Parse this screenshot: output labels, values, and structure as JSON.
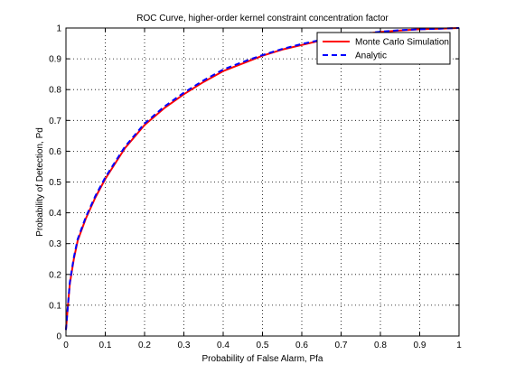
{
  "chart_data": {
    "type": "line",
    "title": "ROC Curve, higher-order kernel constraint concentration factor",
    "xlabel": "Probability of False Alarm, Pfa",
    "ylabel": "Probability of Detection, Pd",
    "xlim": [
      0,
      1
    ],
    "ylim": [
      0,
      1
    ],
    "xticks": [
      "0",
      "0.1",
      "0.2",
      "0.3",
      "0.4",
      "0.5",
      "0.6",
      "0.7",
      "0.8",
      "0.9",
      "1"
    ],
    "yticks": [
      "0",
      "0.1",
      "0.2",
      "0.3",
      "0.4",
      "0.5",
      "0.6",
      "0.7",
      "0.8",
      "0.9",
      "1"
    ],
    "grid": true,
    "legend_position": "top-right",
    "series": [
      {
        "name": "Monte Carlo Simulation",
        "color": "#ff0000",
        "style": "solid",
        "x": [
          0,
          0.005,
          0.01,
          0.02,
          0.03,
          0.05,
          0.075,
          0.1,
          0.125,
          0.15,
          0.2,
          0.25,
          0.3,
          0.35,
          0.4,
          0.45,
          0.5,
          0.55,
          0.6,
          0.65,
          0.7,
          0.75,
          0.8,
          0.85,
          0.9,
          0.95,
          1.0
        ],
        "y": [
          0.02,
          0.1,
          0.17,
          0.25,
          0.31,
          0.38,
          0.45,
          0.51,
          0.56,
          0.61,
          0.685,
          0.74,
          0.785,
          0.825,
          0.86,
          0.885,
          0.91,
          0.93,
          0.945,
          0.96,
          0.97,
          0.98,
          0.987,
          0.992,
          0.996,
          0.998,
          1.0
        ]
      },
      {
        "name": "Analytic",
        "color": "#0000ff",
        "style": "dashed",
        "x": [
          0,
          0.005,
          0.01,
          0.02,
          0.03,
          0.05,
          0.075,
          0.1,
          0.125,
          0.15,
          0.2,
          0.25,
          0.3,
          0.35,
          0.4,
          0.45,
          0.5,
          0.55,
          0.6,
          0.65,
          0.7,
          0.75,
          0.8,
          0.85,
          0.9,
          0.95,
          1.0
        ],
        "y": [
          0.02,
          0.1,
          0.175,
          0.255,
          0.315,
          0.385,
          0.455,
          0.515,
          0.565,
          0.615,
          0.69,
          0.745,
          0.79,
          0.83,
          0.865,
          0.89,
          0.912,
          0.932,
          0.948,
          0.962,
          0.972,
          0.981,
          0.988,
          0.993,
          0.996,
          0.998,
          1.0
        ]
      }
    ]
  }
}
